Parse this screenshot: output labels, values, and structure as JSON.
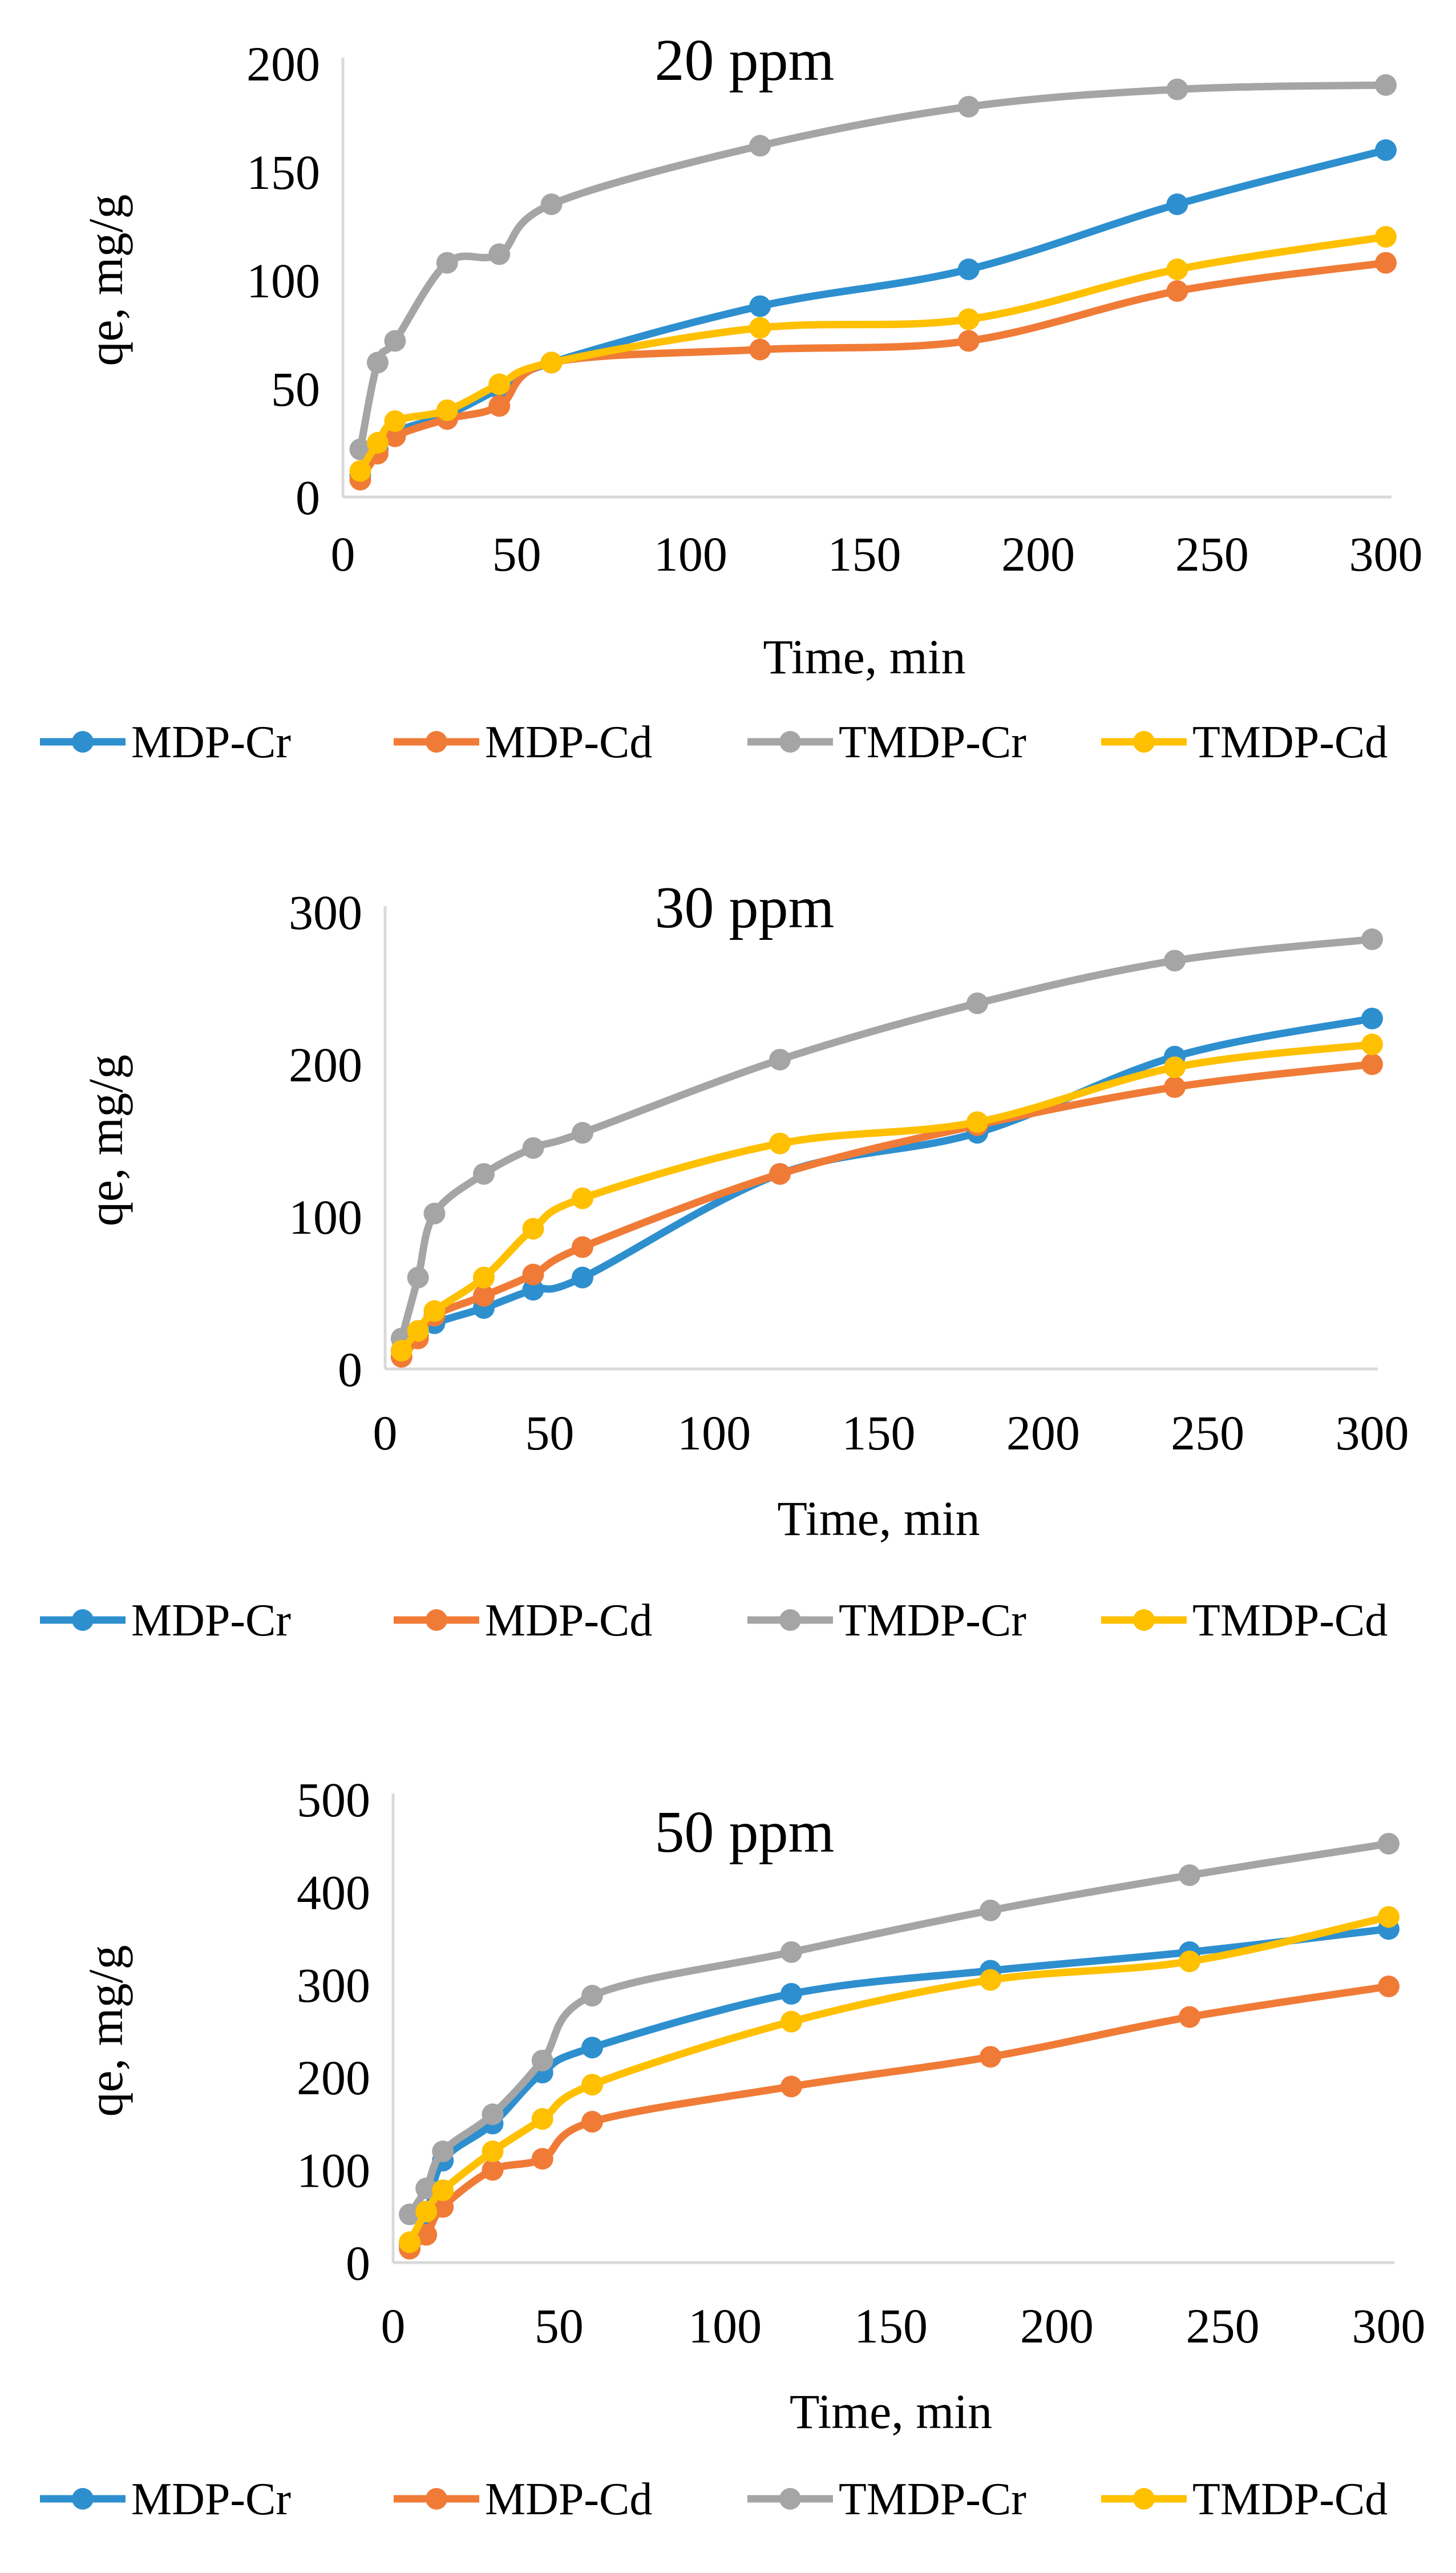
{
  "chart_data": [
    {
      "type": "line",
      "title": "20 ppm",
      "xlabel": "Time, min",
      "ylabel": "qe, mg/g",
      "xlim": [
        0,
        300
      ],
      "ylim": [
        0,
        200
      ],
      "xticks": [
        0,
        50,
        100,
        150,
        200,
        250,
        300
      ],
      "yticks": [
        0,
        50,
        100,
        150,
        200
      ],
      "grid": false,
      "legend_position": "bottom",
      "x": [
        5,
        10,
        15,
        30,
        45,
        60,
        120,
        180,
        240,
        300
      ],
      "series": [
        {
          "name": "MDP-Cr",
          "color": "#2e8fcf",
          "values": [
            10,
            22,
            30,
            38,
            50,
            62,
            88,
            105,
            135,
            160
          ]
        },
        {
          "name": "MDP-Cd",
          "color": "#f07b37",
          "values": [
            8,
            20,
            28,
            36,
            42,
            62,
            68,
            72,
            95,
            108
          ]
        },
        {
          "name": "TMDP-Cr",
          "color": "#a5a5a5",
          "values": [
            22,
            62,
            72,
            108,
            112,
            135,
            162,
            180,
            188,
            190
          ]
        },
        {
          "name": "TMDP-Cd",
          "color": "#ffc000",
          "values": [
            12,
            25,
            35,
            40,
            52,
            62,
            78,
            82,
            105,
            120
          ]
        }
      ]
    },
    {
      "type": "line",
      "title": "30 ppm",
      "xlabel": "Time, min",
      "ylabel": "qe, mg/g",
      "xlim": [
        0,
        300
      ],
      "ylim": [
        0,
        300
      ],
      "xticks": [
        0,
        50,
        100,
        150,
        200,
        250,
        300
      ],
      "yticks": [
        0,
        100,
        200,
        300
      ],
      "grid": false,
      "legend_position": "bottom",
      "x": [
        5,
        10,
        15,
        30,
        45,
        60,
        120,
        180,
        240,
        300
      ],
      "series": [
        {
          "name": "MDP-Cr",
          "color": "#2e8fcf",
          "values": [
            12,
            22,
            30,
            40,
            52,
            60,
            128,
            155,
            205,
            230
          ]
        },
        {
          "name": "MDP-Cd",
          "color": "#f07b37",
          "values": [
            8,
            20,
            35,
            48,
            62,
            80,
            128,
            160,
            185,
            200
          ]
        },
        {
          "name": "TMDP-Cr",
          "color": "#a5a5a5",
          "values": [
            20,
            60,
            102,
            128,
            145,
            155,
            203,
            240,
            268,
            282
          ]
        },
        {
          "name": "TMDP-Cd",
          "color": "#ffc000",
          "values": [
            12,
            25,
            38,
            60,
            92,
            112,
            148,
            162,
            198,
            213
          ]
        }
      ]
    },
    {
      "type": "line",
      "title": "50 ppm",
      "xlabel": "Time, min",
      "ylabel": "qe, mg/g",
      "xlim": [
        0,
        300
      ],
      "ylim": [
        0,
        500
      ],
      "xticks": [
        0,
        50,
        100,
        150,
        200,
        250,
        300
      ],
      "yticks": [
        0,
        100,
        200,
        300,
        400,
        500
      ],
      "grid": false,
      "legend_position": "bottom",
      "x": [
        5,
        10,
        15,
        30,
        45,
        60,
        120,
        180,
        240,
        300
      ],
      "series": [
        {
          "name": "MDP-Cr",
          "color": "#2e8fcf",
          "values": [
            20,
            50,
            110,
            150,
            205,
            232,
            290,
            315,
            335,
            360
          ]
        },
        {
          "name": "MDP-Cd",
          "color": "#f07b37",
          "values": [
            15,
            30,
            60,
            100,
            112,
            152,
            190,
            222,
            265,
            298
          ]
        },
        {
          "name": "TMDP-Cr",
          "color": "#a5a5a5",
          "values": [
            52,
            80,
            120,
            160,
            218,
            288,
            335,
            380,
            418,
            452
          ]
        },
        {
          "name": "TMDP-Cd",
          "color": "#ffc000",
          "values": [
            22,
            55,
            78,
            120,
            155,
            192,
            260,
            305,
            325,
            373
          ]
        }
      ]
    }
  ]
}
